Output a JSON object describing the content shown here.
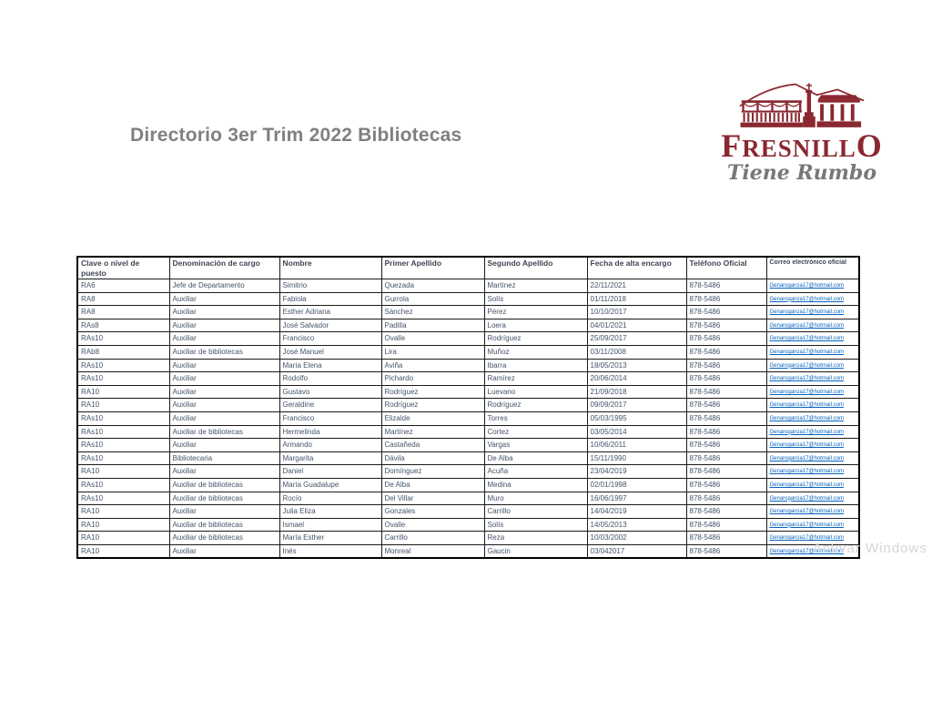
{
  "page": {
    "title": "Directorio 3er Trim 2022 Bibliotecas",
    "watermark": "Activar Windows"
  },
  "logo": {
    "name": "FRESNILLO",
    "name_first": "F",
    "name_mid": "RESNILL",
    "name_last": "O",
    "tagline": "Tiene Rumbo",
    "brand_color": "#8A2831",
    "tagline_color": "#77787B",
    "graphic_icon": "fresnillo-skyline-icon"
  },
  "table": {
    "columns": [
      "Clave o nivel de puesto",
      "Denominación de cargo",
      "Nombre",
      "Primer Apellido",
      "Segundo Apellido",
      "Fecha de alta encargo",
      "Teléfono Oficial",
      "Correo electrónico oficial"
    ],
    "column_keys": [
      "clave",
      "cargo",
      "nombre",
      "primer-apellido",
      "segundo-apellido",
      "fecha-alta",
      "telefono",
      "correo"
    ],
    "rows": [
      [
        "RA6",
        "Jefe de Departamento",
        "Simitrio",
        "Quezada",
        "Martínez",
        "22/11/2021",
        "878-5486",
        "Genarogarcia17@hotmail.com"
      ],
      [
        "RA8",
        "Auxiliar",
        "Fabiola",
        "Gurrola",
        "Solís",
        "01/11/2018",
        "878-5486",
        "Genarogarcia17@hotmail.com"
      ],
      [
        "RA8",
        "Auxiliar",
        "Esther Adriana",
        "Sánchez",
        "Pérez",
        "10/10/2017",
        "878-5486",
        "Genarogarcia17@hotmail.com"
      ],
      [
        "RAs8",
        "Auxiliar",
        "José Salvador",
        "Padilla",
        "Loera",
        "04/01/2021",
        "878-5486",
        "Genarogarcia17@hotmail.com"
      ],
      [
        "RAs10",
        "Auxiliar",
        "Francisco",
        "Ovalle",
        "Rodríguez",
        "25/09/2017",
        "878-5486",
        "Genarogarcia17@hotmail.com"
      ],
      [
        "RAb8",
        "Auxiliar de bibliotecas",
        "José Manuel",
        "Lira",
        "Muñoz",
        "03/11/2008",
        "878-5486",
        "Genarogarcia17@hotmail.com"
      ],
      [
        "RAs10",
        "Auxiliar",
        "María Elena",
        "Aviña",
        "Ibarra",
        "18/05/2013",
        "878-5486",
        "Genarogarcia17@hotmail.com"
      ],
      [
        "RAs10",
        "Auxiliar",
        "Rodolfo",
        "Pichardo",
        "Ramírez",
        "20/06/2014",
        "878-5486",
        "Genarogarcia17@hotmail.com"
      ],
      [
        "RA10",
        "Auxiliar",
        "Gustavo",
        "Rodríguez",
        "Luevano",
        "21/09/2018",
        "878-5486",
        "Genarogarcia17@hotmail.com"
      ],
      [
        "RA10",
        "Auxiliar",
        "Geraldine",
        "Rodríguez",
        "Rodríguez",
        "09/09/2017",
        "878-5486",
        "Genarogarcia17@hotmail.com"
      ],
      [
        "RAs10",
        "Auxiliar",
        "Francisco",
        "Elizalde",
        "Torres",
        "05/03/1995",
        "878-5486",
        "Genarogarcia17@hotmail.com"
      ],
      [
        "RAs10",
        "Auxiliar de bibliotecas",
        "Hermelinda",
        "Martínez",
        "Cortez",
        "03/05/2014",
        "878-5486",
        "Genarogarcia17@hotmail.com"
      ],
      [
        "RAs10",
        "Auxiliar",
        "Armando",
        "Castañeda",
        "Vargas",
        "10/06/2011",
        "878-5486",
        "Genarogarcia17@hotmail.com"
      ],
      [
        "RAs10",
        "Bibliotecaria",
        "Margarita",
        "Dávila",
        "De Alba",
        "15/11/1990",
        "878-5486",
        "Genarogarcia17@hotmail.com"
      ],
      [
        "RA10",
        "Auxiliar",
        "Daniel",
        "Domínguez",
        "Acuña",
        "23/04/2019",
        "878-5486",
        "Genarogarcia17@hotmail.com"
      ],
      [
        "RAs10",
        "Auxiliar de bibliotecas",
        "María Guadalupe",
        "De Alba",
        "Medina",
        "02/01/1998",
        "878-5486",
        "Genarogarcia17@hotmail.com"
      ],
      [
        "RAs10",
        "Auxiliar de bibliotecas",
        "Rocío",
        "Del Villar",
        "Muro",
        "16/06/1997",
        "878-5486",
        "Genarogarcia17@hotmail.com"
      ],
      [
        "RA10",
        "Auxiliar",
        "Julia Eliza",
        "Gonzales",
        "Carrillo",
        "14/04/2019",
        "878-5486",
        "Genarogarcia17@hotmail.com"
      ],
      [
        "RA10",
        "Auxiliar de bibliotecas",
        "Ismael",
        "Ovalle",
        "Solís",
        "14/05/2013",
        "878-5486",
        "Genarogarcia17@hotmail.com"
      ],
      [
        "RA10",
        "Auxiliar de bibliotecas",
        "María Esther",
        "Carrillo",
        "Reza",
        "10/03/2002",
        "878-5486",
        "Genarogarcia17@hotmail.com"
      ],
      [
        "RA10",
        "Auxiliar",
        "Inés",
        "Monreal",
        "Gaucin",
        "03/042017",
        "878-5486",
        "Genarogarcia17@hotmail.com"
      ]
    ]
  }
}
